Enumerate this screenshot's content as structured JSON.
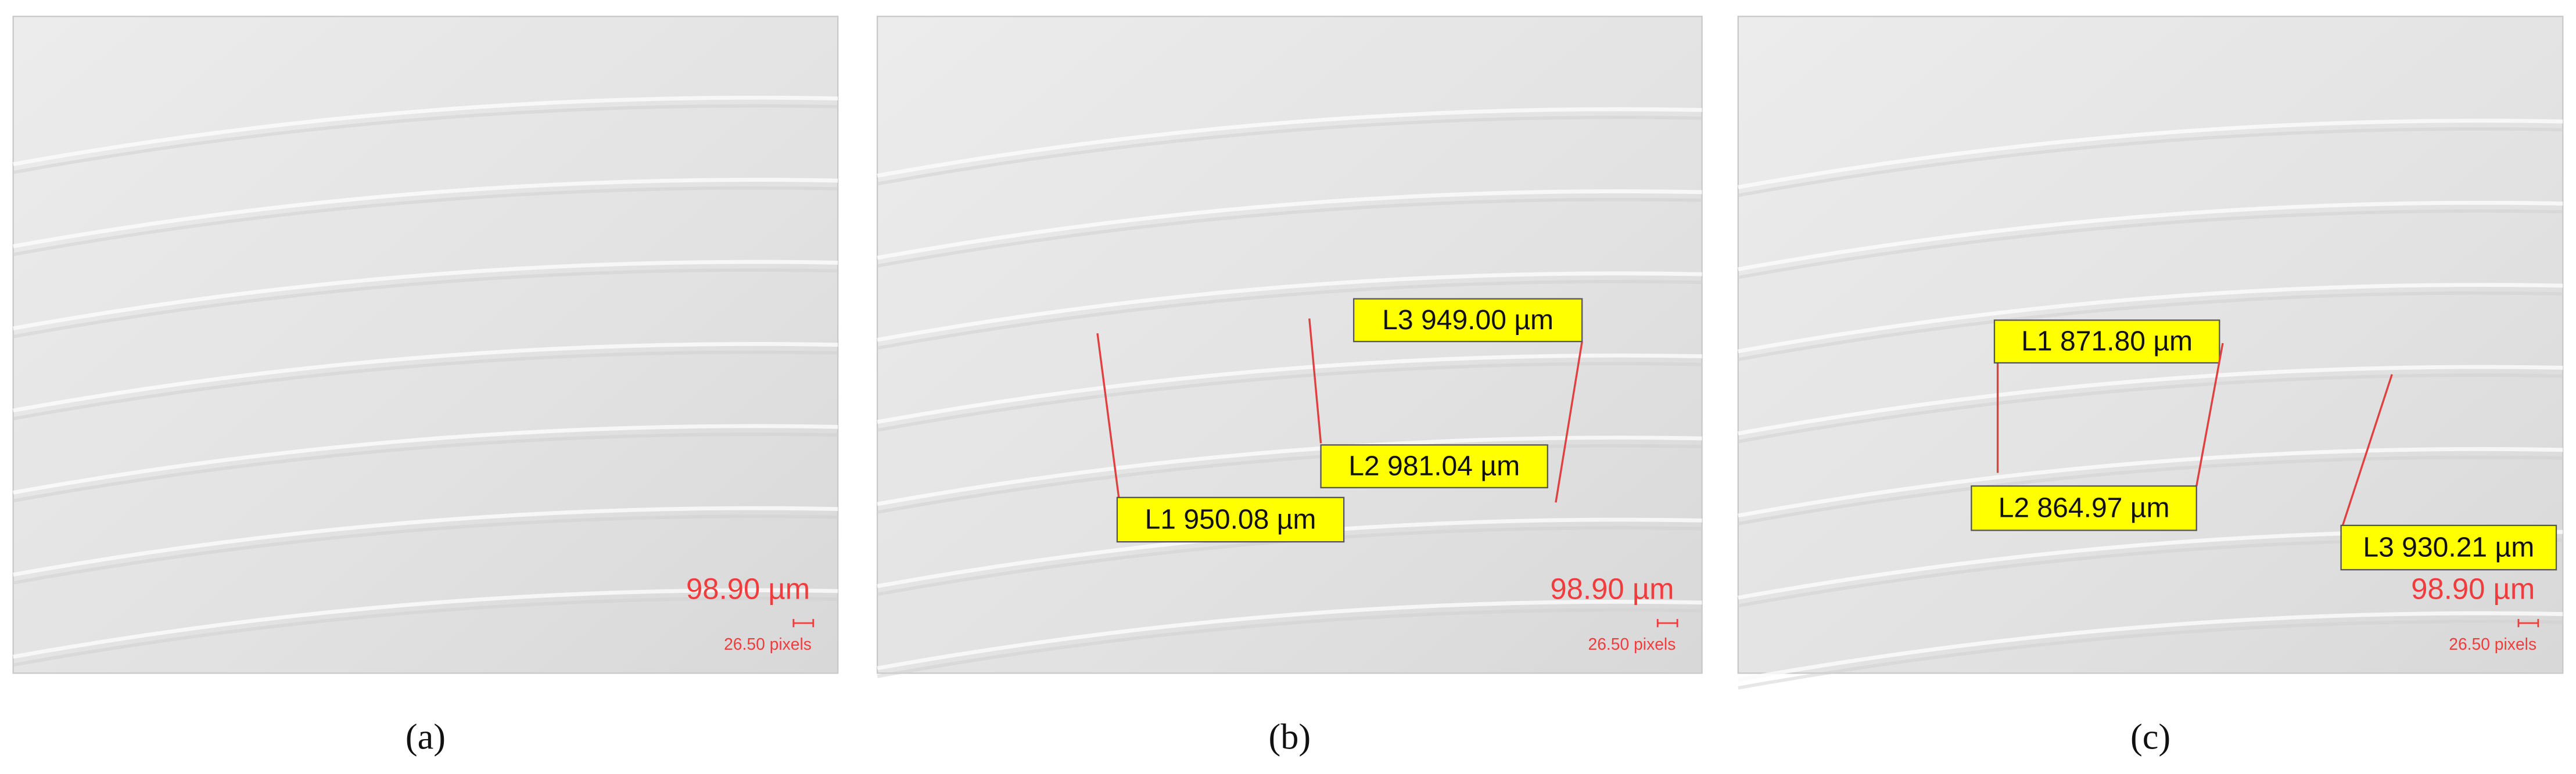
{
  "panels": [
    {
      "caption": "(a)",
      "scale_value": "98.90 µm",
      "scale_pixels": "26.50 pixels",
      "measurements": []
    },
    {
      "caption": "(b)",
      "scale_value": "98.90 µm",
      "scale_pixels": "26.50 pixels",
      "measurements": [
        {
          "label": "L1 950.08 µm"
        },
        {
          "label": "L2 981.04 µm"
        },
        {
          "label": "L3 949.00 µm"
        }
      ]
    },
    {
      "caption": "(c)",
      "scale_value": "98.90 µm",
      "scale_pixels": "26.50 pixels",
      "measurements": [
        {
          "label": "L1 871.80 µm"
        },
        {
          "label": "L2 864.97 µm"
        },
        {
          "label": "L3 930.21 µm"
        }
      ]
    }
  ]
}
